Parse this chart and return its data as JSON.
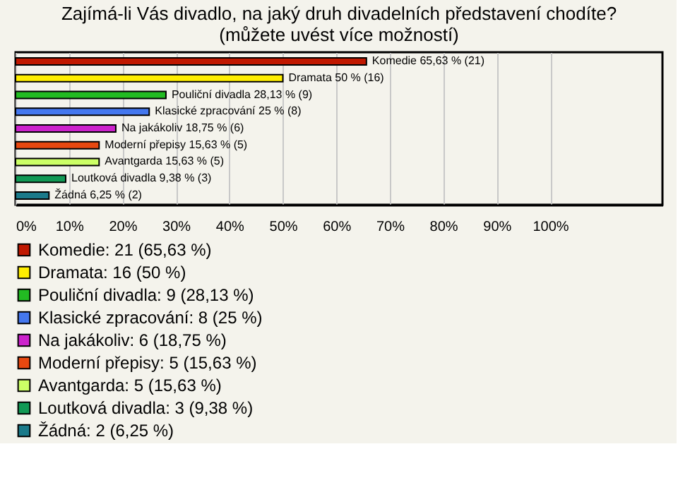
{
  "chart_data": {
    "type": "bar",
    "orientation": "horizontal",
    "title": "Zajímá-li Vás divadlo, na jaký druh divadelních představení chodíte?\n(můžete uvést více možností)",
    "categories": [
      null,
      null,
      null,
      null,
      null,
      null,
      null,
      null,
      null
    ],
    "series": [
      {
        "name": "Komedie: 21 (65,63 %)",
        "color": "#c01800",
        "values": [
          65.63,
          null,
          null,
          null,
          null,
          null,
          null,
          null,
          null
        ],
        "value_labels": [
          "Komedie 65,63 % (21)",
          null,
          null,
          null,
          null,
          null,
          null,
          null,
          null
        ]
      },
      {
        "name": "Dramata: 16 (50 %)",
        "color": "#ffee00",
        "values": [
          null,
          50,
          null,
          null,
          null,
          null,
          null,
          null,
          null
        ],
        "value_labels": [
          null,
          "Dramata 50 % (16)",
          null,
          null,
          null,
          null,
          null,
          null,
          null
        ]
      },
      {
        "name": "Pouliční divadla: 9 (28,13 %)",
        "color": "#22bb22",
        "values": [
          null,
          null,
          28.13,
          null,
          null,
          null,
          null,
          null,
          null
        ],
        "value_labels": [
          null,
          null,
          "Pouliční divadla 28,13 % (9)",
          null,
          null,
          null,
          null,
          null,
          null
        ]
      },
      {
        "name": "Klasické zpracování: 8 (25 %)",
        "color": "#4477ee",
        "values": [
          null,
          null,
          null,
          25,
          null,
          null,
          null,
          null,
          null
        ],
        "value_labels": [
          null,
          null,
          null,
          "Klasické zpracování 25 % (8)",
          null,
          null,
          null,
          null,
          null
        ]
      },
      {
        "name": "Na jakákoliv: 6 (18,75 %)",
        "color": "#cc22cc",
        "values": [
          null,
          null,
          null,
          null,
          18.75,
          null,
          null,
          null,
          null
        ],
        "value_labels": [
          null,
          null,
          null,
          null,
          "Na jakákoliv 18,75 % (6)",
          null,
          null,
          null,
          null
        ]
      },
      {
        "name": "Moderní přepisy: 5 (15,63 %)",
        "color": "#e84810",
        "values": [
          null,
          null,
          null,
          null,
          null,
          15.63,
          null,
          null,
          null
        ],
        "value_labels": [
          null,
          null,
          null,
          null,
          null,
          "Moderní přepisy 15,63 % (5)",
          null,
          null,
          null
        ]
      },
      {
        "name": "Avantgarda: 5 (15,63 %)",
        "color": "#ccff66",
        "values": [
          null,
          null,
          null,
          null,
          null,
          null,
          15.63,
          null,
          null
        ],
        "value_labels": [
          null,
          null,
          null,
          null,
          null,
          null,
          "Avantgarda 15,63 % (5)",
          null,
          null
        ]
      },
      {
        "name": "Loutková divadla: 3 (9,38 %)",
        "color": "#119955",
        "values": [
          null,
          null,
          null,
          null,
          null,
          null,
          null,
          9.38,
          null
        ],
        "value_labels": [
          null,
          null,
          null,
          null,
          null,
          null,
          null,
          "Loutková divadla 9,38 % (3)",
          null
        ]
      },
      {
        "name": "Žádná: 2 (6,25 %)",
        "color": "#1a7a8a",
        "values": [
          null,
          null,
          null,
          null,
          null,
          null,
          null,
          null,
          6.25
        ],
        "value_labels": [
          null,
          null,
          null,
          null,
          null,
          null,
          null,
          null,
          "Žádná 6,25 % (2)"
        ]
      }
    ],
    "xlim": [
      0,
      121
    ],
    "xticks": [
      {
        "value": 0,
        "label": "0%"
      },
      {
        "value": 10,
        "label": "10%"
      },
      {
        "value": 20,
        "label": "20%"
      },
      {
        "value": 30,
        "label": "30%"
      },
      {
        "value": 40,
        "label": "40%"
      },
      {
        "value": 50,
        "label": "50%"
      },
      {
        "value": 60,
        "label": "60%"
      },
      {
        "value": 70,
        "label": "70%"
      },
      {
        "value": 80,
        "label": "80%"
      },
      {
        "value": 90,
        "label": "90%"
      },
      {
        "value": 100,
        "label": "100%"
      }
    ],
    "grid": "x",
    "legend": "bottom",
    "tick_labels": "x"
  }
}
